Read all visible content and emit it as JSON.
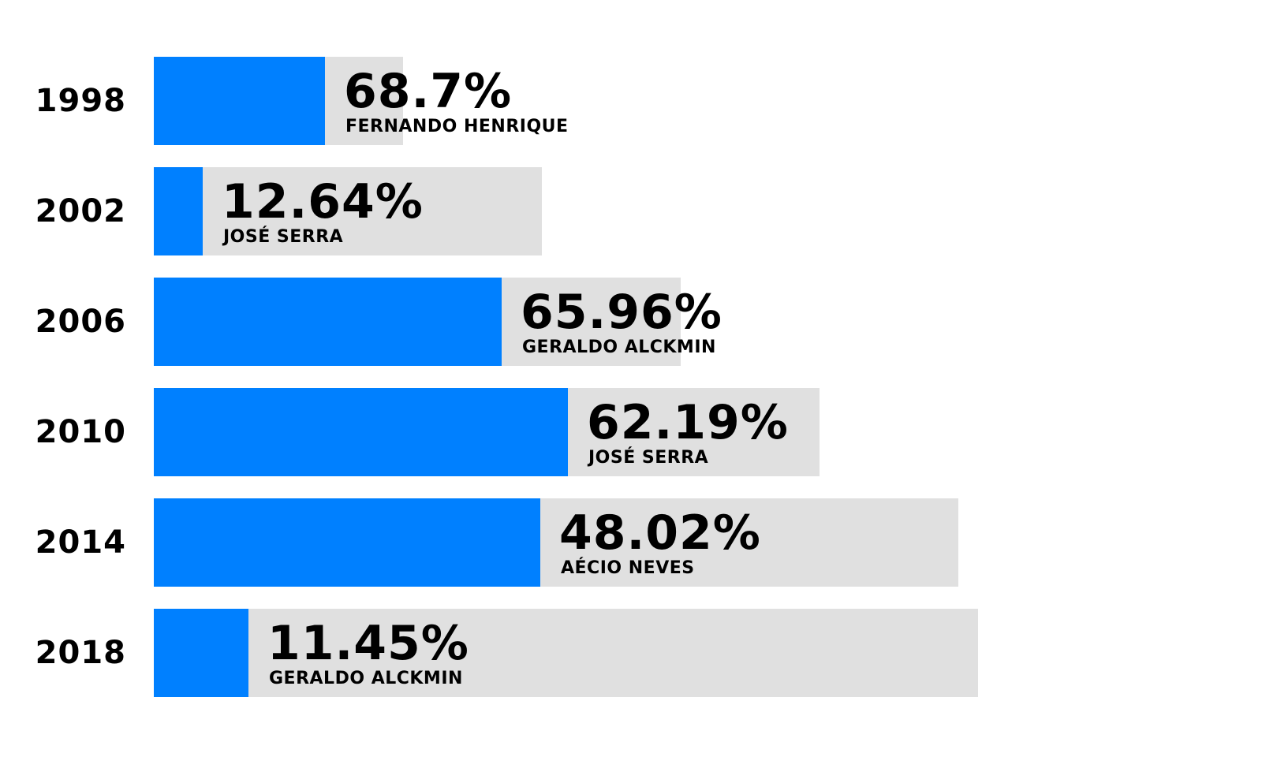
{
  "colors": {
    "fill": "#0080ff",
    "track": "#e0e0e0",
    "text": "#000000"
  },
  "chart_data": {
    "type": "bar",
    "orientation": "horizontal",
    "title": "",
    "xlabel": "",
    "ylabel": "",
    "grid": false,
    "categories": [
      "1998",
      "2002",
      "2006",
      "2010",
      "2014",
      "2018"
    ],
    "values": [
      68.7,
      12.64,
      65.96,
      62.19,
      48.02,
      11.45
    ],
    "value_labels": [
      "68.7%",
      "12.64%",
      "65.96%",
      "62.19%",
      "48.02%",
      "11.45%"
    ],
    "candidates": [
      "FERNANDO HENRIQUE",
      "JOSÉ SERRA",
      "GERALDO ALCKMIN",
      "JOSÉ SERRA",
      "AÉCIO NEVES",
      "GERALDO ALCKMIN"
    ]
  }
}
